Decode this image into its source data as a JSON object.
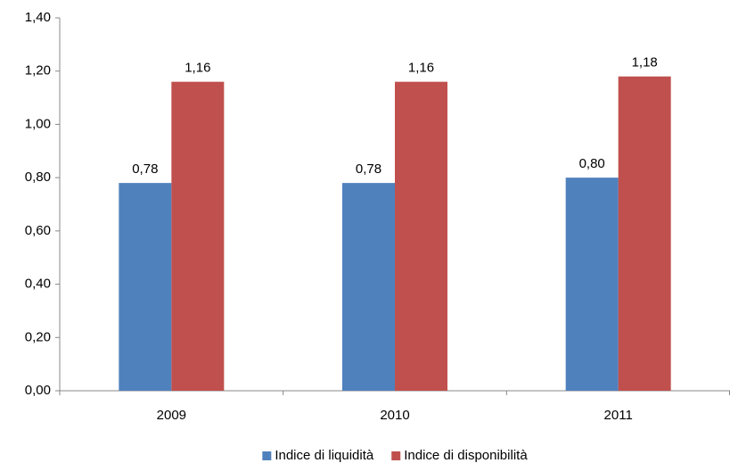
{
  "chart_data": {
    "type": "bar",
    "categories": [
      "2009",
      "2010",
      "2011"
    ],
    "series": [
      {
        "name": "Indice di liquidità",
        "color": "#4f81bd",
        "values": [
          0.78,
          0.78,
          0.8
        ],
        "value_labels": [
          "0,78",
          "0,78",
          "0,80"
        ]
      },
      {
        "name": "Indice di disponibilità",
        "color": "#c0504d",
        "values": [
          1.16,
          1.16,
          1.18
        ],
        "value_labels": [
          "1,16",
          "1,16",
          "1,18"
        ]
      }
    ],
    "ylim": [
      0,
      1.4
    ],
    "yticks": [
      {
        "value": 0,
        "label": "0,00"
      },
      {
        "value": 0.2,
        "label": "0,20"
      },
      {
        "value": 0.4,
        "label": "0,40"
      },
      {
        "value": 0.6,
        "label": "0,60"
      },
      {
        "value": 0.8,
        "label": "0,80"
      },
      {
        "value": 1.0,
        "label": "1,00"
      },
      {
        "value": 1.2,
        "label": "1,20"
      },
      {
        "value": 1.4,
        "label": "1,40"
      }
    ],
    "legend": "bottom"
  }
}
